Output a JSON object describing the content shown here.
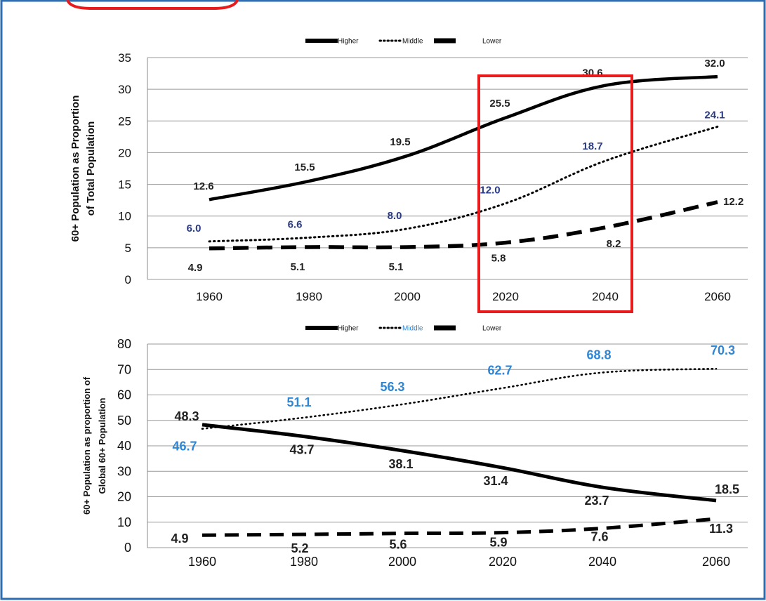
{
  "colors": {
    "frame_border": "#2e6db0",
    "highlight_box": "#e81c1c",
    "line_dark": "#000000",
    "label_dark": "#222222",
    "label_blue_dark": "#2a3b86",
    "label_blue_light": "#2e86d4",
    "grid": "#999999"
  },
  "chart_data": [
    {
      "type": "line",
      "ylabel_lines": [
        "60+ Population as Proportion",
        "of Total Population"
      ],
      "xlabel": "",
      "categories": [
        "1960",
        "1980",
        "2000",
        "2020",
        "2040",
        "2060"
      ],
      "ylim": [
        0,
        35
      ],
      "yticks": [
        "0",
        "5",
        "10",
        "15",
        "20",
        "25",
        "30",
        "35"
      ],
      "grid": true,
      "legend_placement": "top",
      "legend": [
        "Higher",
        "Middle",
        "Lower"
      ],
      "series": [
        {
          "name": "Higher",
          "style": "solid",
          "values": [
            12.6,
            15.5,
            19.5,
            25.5,
            30.6,
            32.0
          ],
          "labels": [
            "12.6",
            "15.5",
            "19.5",
            "25.5",
            "30.6",
            "32.0"
          ]
        },
        {
          "name": "Middle",
          "style": "dotted",
          "values": [
            6.0,
            6.6,
            8.0,
            12.0,
            18.7,
            24.1
          ],
          "labels": [
            "6.0",
            "6.6",
            "8.0",
            "12.0",
            "18.7",
            "24.1"
          ]
        },
        {
          "name": "Lower",
          "style": "dashed",
          "values": [
            4.9,
            5.1,
            5.1,
            5.8,
            8.2,
            12.2
          ],
          "labels": [
            "4.9",
            "5.1",
            "5.1",
            "5.8",
            "8.2",
            "12.2"
          ]
        }
      ],
      "highlight": {
        "from": "2020",
        "to": "2040"
      }
    },
    {
      "type": "line",
      "ylabel_lines": [
        "60+ Population as proportion of",
        "Global 60+ Population"
      ],
      "xlabel": "",
      "categories": [
        "1960",
        "1980",
        "2000",
        "2020",
        "2040",
        "2060"
      ],
      "ylim": [
        0,
        80
      ],
      "yticks": [
        "0",
        "10",
        "20",
        "30",
        "40",
        "50",
        "60",
        "70",
        "80"
      ],
      "grid": true,
      "legend_placement": "top",
      "legend": [
        "Higher",
        "Middle",
        "Lower"
      ],
      "series": [
        {
          "name": "Higher",
          "style": "solid",
          "values": [
            48.3,
            43.7,
            38.1,
            31.4,
            23.7,
            18.5
          ],
          "labels": [
            "48.3",
            "43.7",
            "38.1",
            "31.4",
            "23.7",
            "18.5"
          ]
        },
        {
          "name": "Middle",
          "style": "dotted",
          "values": [
            46.7,
            51.1,
            56.3,
            62.7,
            68.8,
            70.3
          ],
          "labels": [
            "46.7",
            "51.1",
            "56.3",
            "62.7",
            "68.8",
            "70.3"
          ]
        },
        {
          "name": "Lower",
          "style": "dashed",
          "values": [
            4.9,
            5.2,
            5.6,
            5.9,
            7.6,
            11.3
          ],
          "labels": [
            "4.9",
            "5.2",
            "5.6",
            "5.9",
            "7.6",
            "11.3"
          ]
        }
      ]
    }
  ]
}
